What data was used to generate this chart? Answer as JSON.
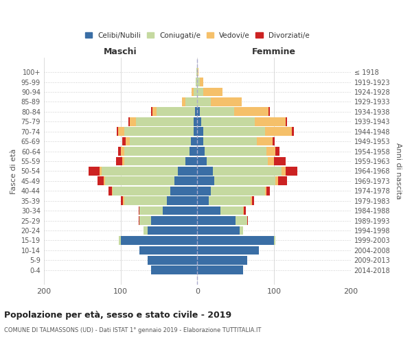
{
  "age_groups": [
    "0-4",
    "5-9",
    "10-14",
    "15-19",
    "20-24",
    "25-29",
    "30-34",
    "35-39",
    "40-44",
    "45-49",
    "50-54",
    "55-59",
    "60-64",
    "65-69",
    "70-74",
    "75-79",
    "80-84",
    "85-89",
    "90-94",
    "95-99",
    "100+"
  ],
  "birth_years": [
    "2014-2018",
    "2009-2013",
    "2004-2008",
    "1999-2003",
    "1994-1998",
    "1989-1993",
    "1984-1988",
    "1979-1983",
    "1974-1978",
    "1969-1973",
    "1964-1968",
    "1959-1963",
    "1954-1958",
    "1949-1953",
    "1944-1948",
    "1939-1943",
    "1934-1938",
    "1929-1933",
    "1924-1928",
    "1919-1923",
    "≤ 1918"
  ],
  "males": {
    "celibi": [
      60,
      65,
      75,
      100,
      65,
      60,
      45,
      40,
      35,
      30,
      25,
      15,
      10,
      8,
      5,
      5,
      3,
      0,
      0,
      0,
      0
    ],
    "coniugati": [
      0,
      0,
      0,
      2,
      5,
      15,
      30,
      55,
      75,
      90,
      100,
      80,
      85,
      80,
      90,
      75,
      50,
      15,
      5,
      2,
      1
    ],
    "vedovi": [
      0,
      0,
      0,
      0,
      0,
      0,
      0,
      2,
      1,
      2,
      2,
      3,
      5,
      5,
      8,
      8,
      5,
      5,
      2,
      0,
      0
    ],
    "divorziati": [
      0,
      0,
      0,
      0,
      0,
      1,
      1,
      3,
      5,
      8,
      15,
      8,
      3,
      5,
      2,
      2,
      2,
      0,
      0,
      0,
      0
    ]
  },
  "females": {
    "nubili": [
      60,
      65,
      80,
      100,
      55,
      50,
      30,
      15,
      18,
      22,
      20,
      12,
      10,
      8,
      8,
      5,
      3,
      0,
      0,
      0,
      0
    ],
    "coniugate": [
      0,
      0,
      0,
      2,
      5,
      15,
      30,
      55,
      70,
      80,
      90,
      80,
      80,
      70,
      80,
      70,
      45,
      18,
      8,
      3,
      1
    ],
    "vedove": [
      0,
      0,
      0,
      0,
      0,
      0,
      1,
      1,
      2,
      3,
      5,
      8,
      12,
      20,
      35,
      40,
      45,
      40,
      25,
      5,
      1
    ],
    "divorziate": [
      0,
      0,
      0,
      0,
      0,
      1,
      2,
      3,
      5,
      12,
      15,
      15,
      5,
      3,
      3,
      2,
      2,
      0,
      0,
      0,
      0
    ]
  },
  "colors": {
    "celibi": "#3a6ea5",
    "coniugati": "#c5d9a0",
    "vedovi": "#f5c06a",
    "divorziati": "#cc2222"
  },
  "title": "Popolazione per età, sesso e stato civile - 2019",
  "subtitle": "COMUNE DI TALMASSONS (UD) - Dati ISTAT 1° gennaio 2019 - Elaborazione TUTTITALIA.IT",
  "ylabel_left": "Fasce di età",
  "ylabel_right": "Anni di nascita",
  "xlim": 200,
  "legend_labels": [
    "Celibi/Nubili",
    "Coniugati/e",
    "Vedovi/e",
    "Divorziati/e"
  ],
  "maschi_label": "Maschi",
  "femmine_label": "Femmine",
  "background_color": "#ffffff",
  "grid_color": "#cccccc"
}
